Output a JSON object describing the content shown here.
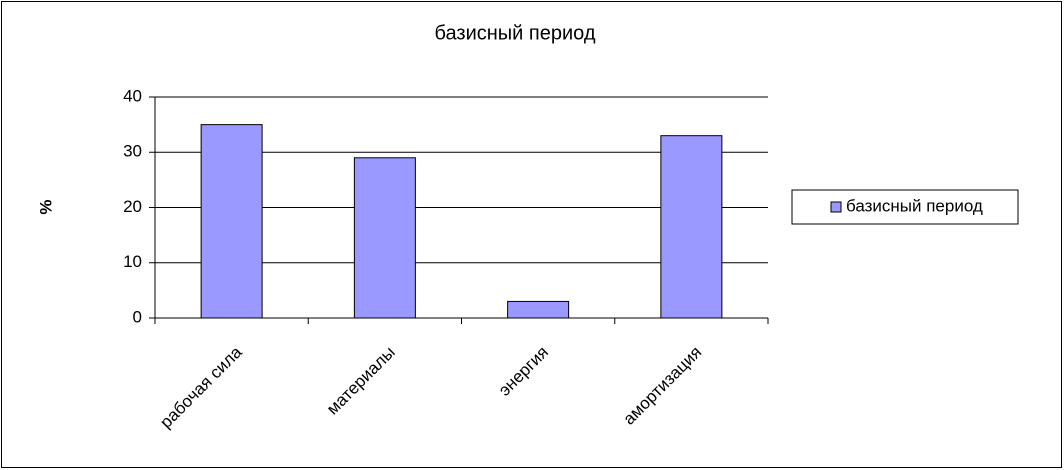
{
  "chart_data": {
    "type": "bar",
    "title": "базисный период",
    "y_label": "%",
    "categories": [
      "рабочая сила",
      "материалы",
      "энергия",
      "амортизация"
    ],
    "series": [
      {
        "name": "базисный период",
        "color": "#9999ff",
        "values": [
          35,
          29,
          3,
          33
        ]
      }
    ],
    "ylim": [
      0,
      40
    ],
    "yticks": [
      0,
      10,
      20,
      30,
      40
    ],
    "grid": true,
    "legend": "right"
  }
}
